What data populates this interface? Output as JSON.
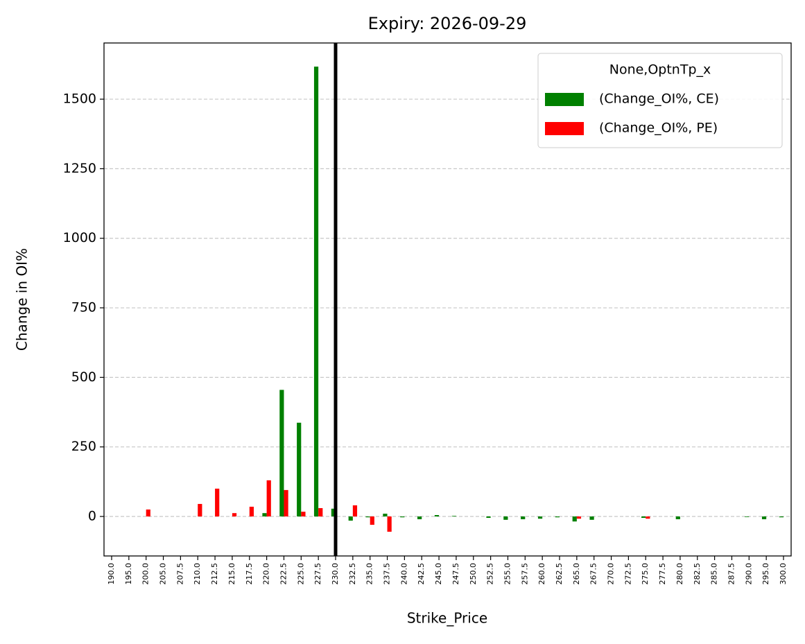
{
  "chart_data": {
    "type": "bar",
    "title": "Expiry: 2026-09-29",
    "x_label": "Strike_Price",
    "y_label": "Change in OI%",
    "legend_title": "None,OptnTp_x",
    "legend_position": "upper right",
    "categories": [
      "190.0",
      "195.0",
      "200.0",
      "205.0",
      "207.5",
      "210.0",
      "212.5",
      "215.0",
      "217.5",
      "220.0",
      "222.5",
      "225.0",
      "227.5",
      "230.0",
      "232.5",
      "235.0",
      "237.5",
      "240.0",
      "242.5",
      "245.0",
      "247.5",
      "250.0",
      "252.5",
      "255.0",
      "257.5",
      "260.0",
      "262.5",
      "265.0",
      "267.5",
      "270.0",
      "272.5",
      "275.0",
      "277.5",
      "280.0",
      "282.5",
      "285.0",
      "287.5",
      "290.0",
      "295.0",
      "300.0"
    ],
    "series": [
      {
        "name": "(Change_OI%, CE)",
        "color": "#008000",
        "values": [
          0,
          0,
          0,
          0,
          0,
          0,
          0,
          0,
          0,
          12,
          455,
          337,
          1617,
          28,
          -15,
          -3,
          10,
          -3,
          -10,
          5,
          2,
          0,
          -5,
          -12,
          -10,
          -8,
          -3,
          -18,
          -12,
          0,
          0,
          -5,
          0,
          -10,
          0,
          0,
          0,
          -2,
          -10,
          -3
        ]
      },
      {
        "name": "(Change_OI%, PE)",
        "color": "#ff0000",
        "values": [
          0,
          0,
          25,
          0,
          0,
          45,
          100,
          12,
          35,
          130,
          95,
          17,
          30,
          0,
          40,
          -30,
          -55,
          0,
          0,
          0,
          0,
          0,
          0,
          0,
          0,
          0,
          0,
          -8,
          0,
          0,
          0,
          -8,
          0,
          0,
          0,
          0,
          0,
          0,
          0,
          0
        ]
      }
    ],
    "spot_line": 230,
    "ylim": [
      -142,
      1702
    ],
    "yticks": [
      0,
      250,
      500,
      750,
      1000,
      1250,
      1500
    ],
    "grid": true
  }
}
